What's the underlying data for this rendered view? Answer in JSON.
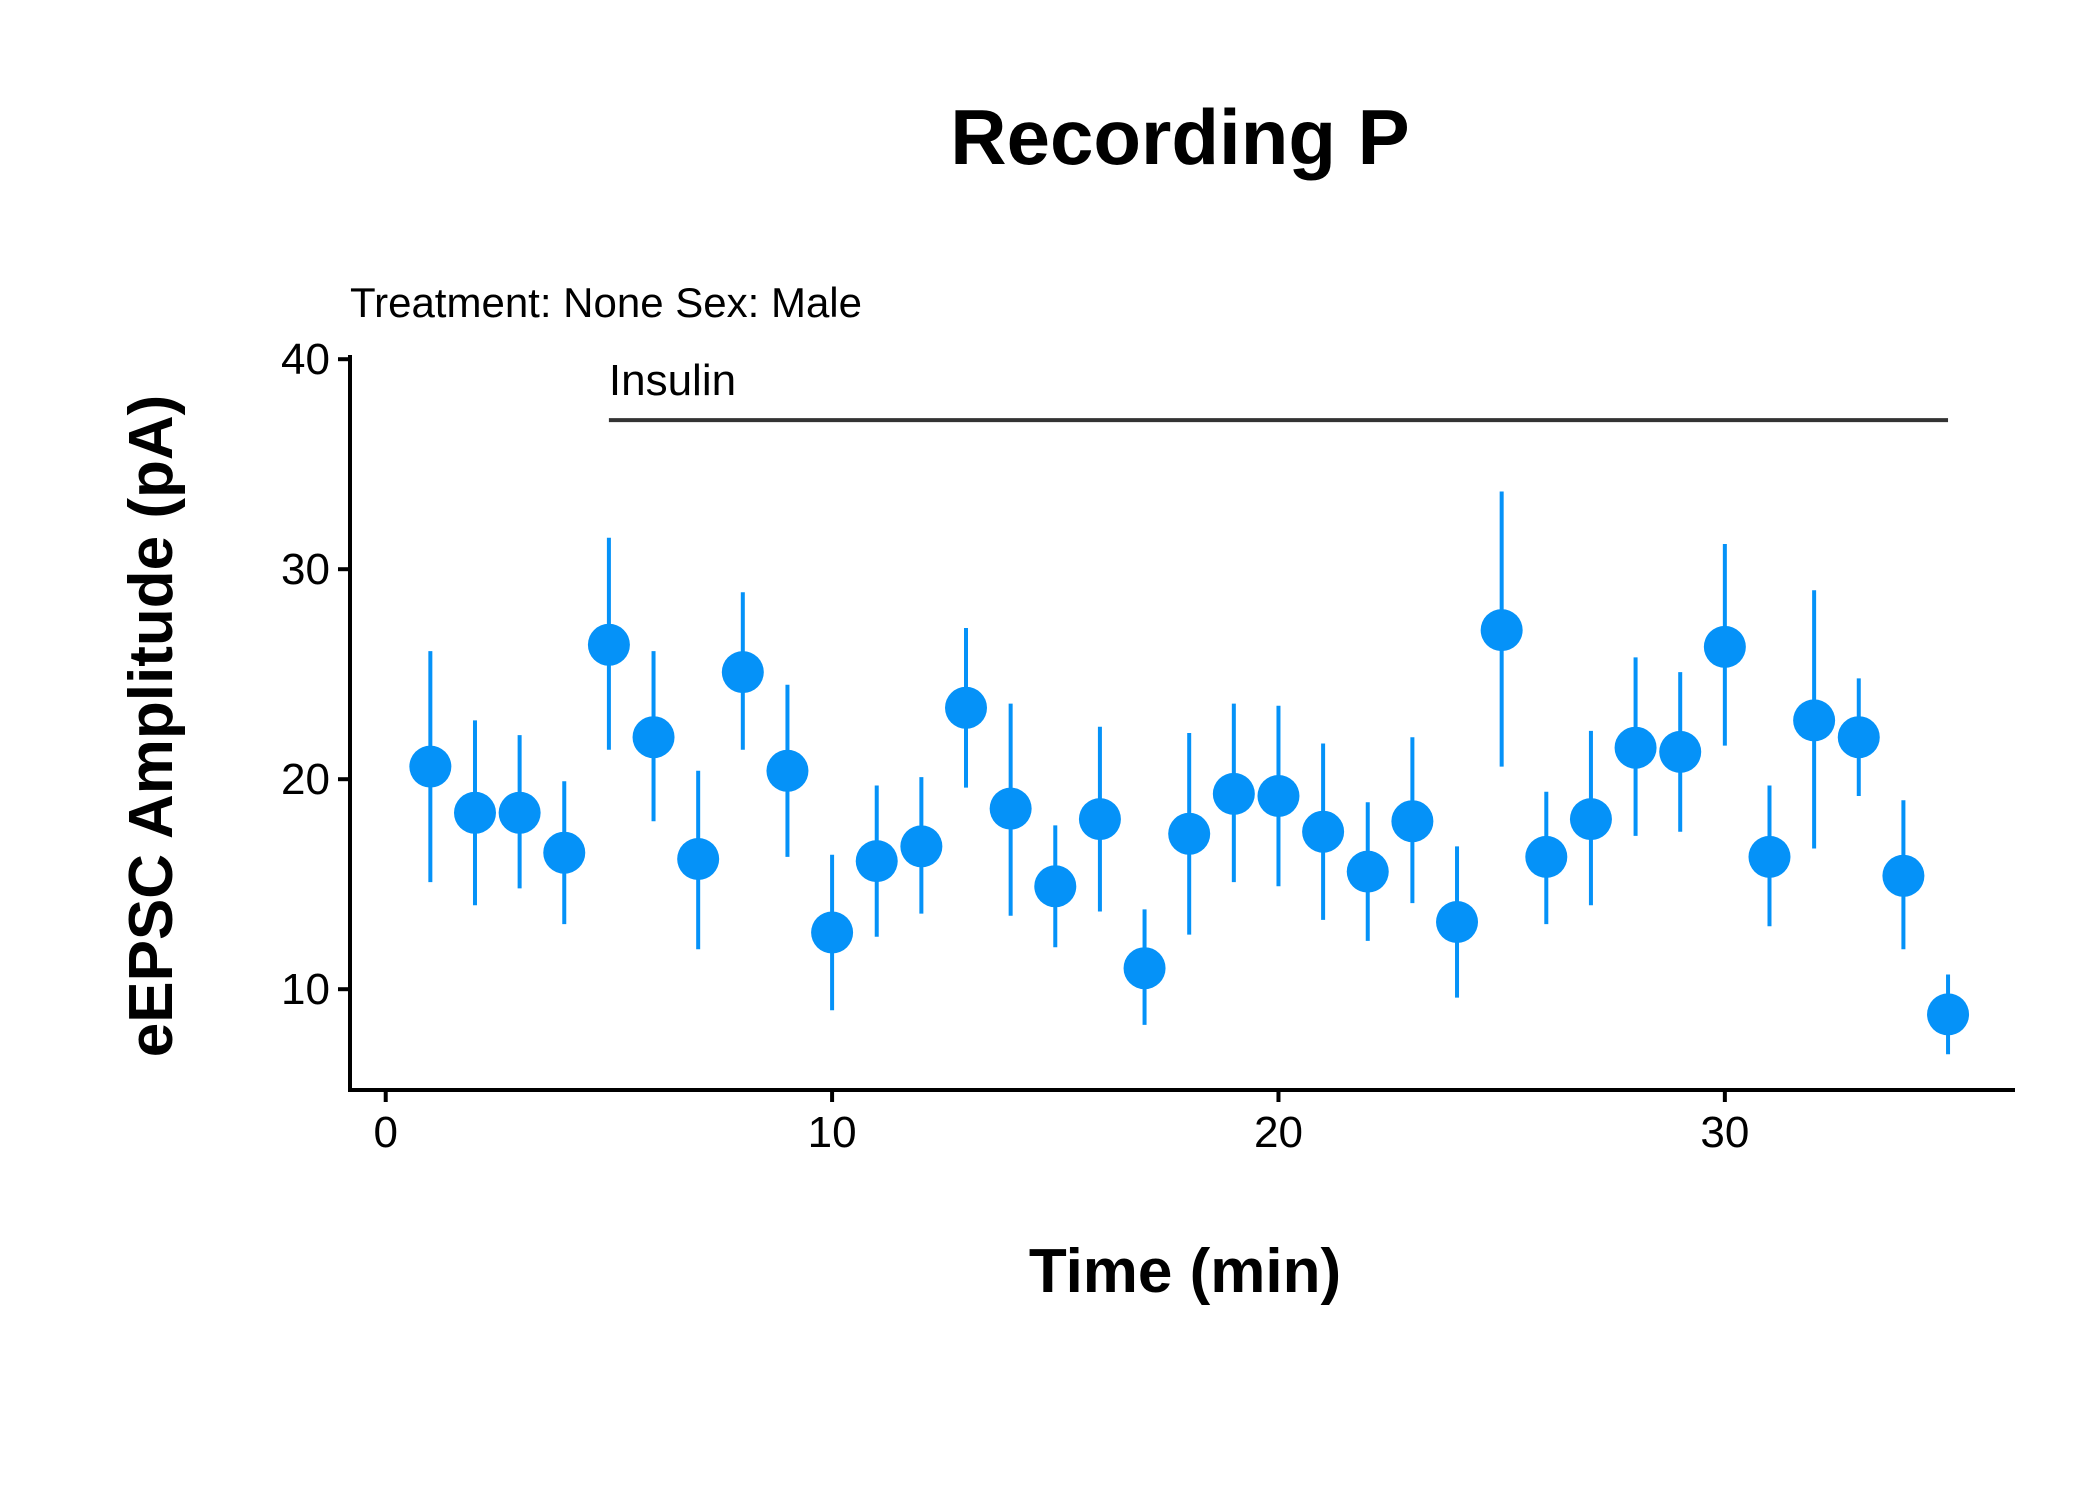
{
  "chart_data": {
    "type": "scatter",
    "title": "Recording P",
    "subtitle": "Treatment: None  Sex: Male",
    "xlabel": "Time (min)",
    "ylabel": "eEPSC Amplitude (pA)",
    "xlim": [
      -0.8,
      36.5
    ],
    "ylim": [
      5.2,
      40.2
    ],
    "xticks": [
      0,
      10,
      20,
      30
    ],
    "yticks": [
      10,
      20,
      30,
      40
    ],
    "grid": false,
    "point_color": "#0592F8",
    "annotation": {
      "label": "Insulin",
      "x_start": 5,
      "x_end": 35,
      "y": 37.1,
      "color": "#333333"
    },
    "x": [
      1,
      2,
      3,
      4,
      5,
      6,
      7,
      8,
      9,
      10,
      11,
      12,
      13,
      14,
      15,
      16,
      17,
      18,
      19,
      20,
      21,
      22,
      23,
      24,
      25,
      26,
      27,
      28,
      29,
      30,
      31,
      32,
      33,
      34,
      35
    ],
    "y": [
      20.6,
      18.4,
      18.4,
      16.5,
      26.4,
      22.0,
      16.2,
      25.1,
      20.4,
      12.7,
      16.1,
      16.8,
      23.4,
      18.6,
      14.9,
      18.1,
      11.0,
      17.4,
      19.3,
      19.2,
      17.5,
      15.6,
      18.0,
      13.2,
      27.1,
      16.3,
      18.1,
      21.5,
      21.3,
      26.3,
      16.3,
      22.8,
      22.0,
      15.4,
      8.8
    ],
    "y_lower": [
      15.1,
      14.0,
      14.8,
      13.1,
      21.4,
      18.0,
      11.9,
      21.4,
      16.3,
      9.0,
      12.5,
      13.6,
      19.6,
      13.5,
      12.0,
      13.7,
      8.3,
      12.6,
      15.1,
      14.9,
      13.3,
      12.3,
      14.1,
      9.6,
      20.6,
      13.1,
      14.0,
      17.3,
      17.5,
      21.6,
      13.0,
      16.7,
      19.2,
      11.9,
      6.9
    ],
    "y_upper": [
      26.1,
      22.8,
      22.1,
      19.9,
      31.5,
      26.1,
      20.4,
      28.9,
      24.5,
      16.4,
      19.7,
      20.1,
      27.2,
      23.6,
      17.8,
      22.5,
      13.8,
      22.2,
      23.6,
      23.5,
      21.7,
      18.9,
      22.0,
      16.8,
      33.7,
      19.4,
      22.3,
      25.8,
      25.1,
      31.2,
      19.7,
      29.0,
      24.8,
      19.0,
      10.7
    ]
  }
}
